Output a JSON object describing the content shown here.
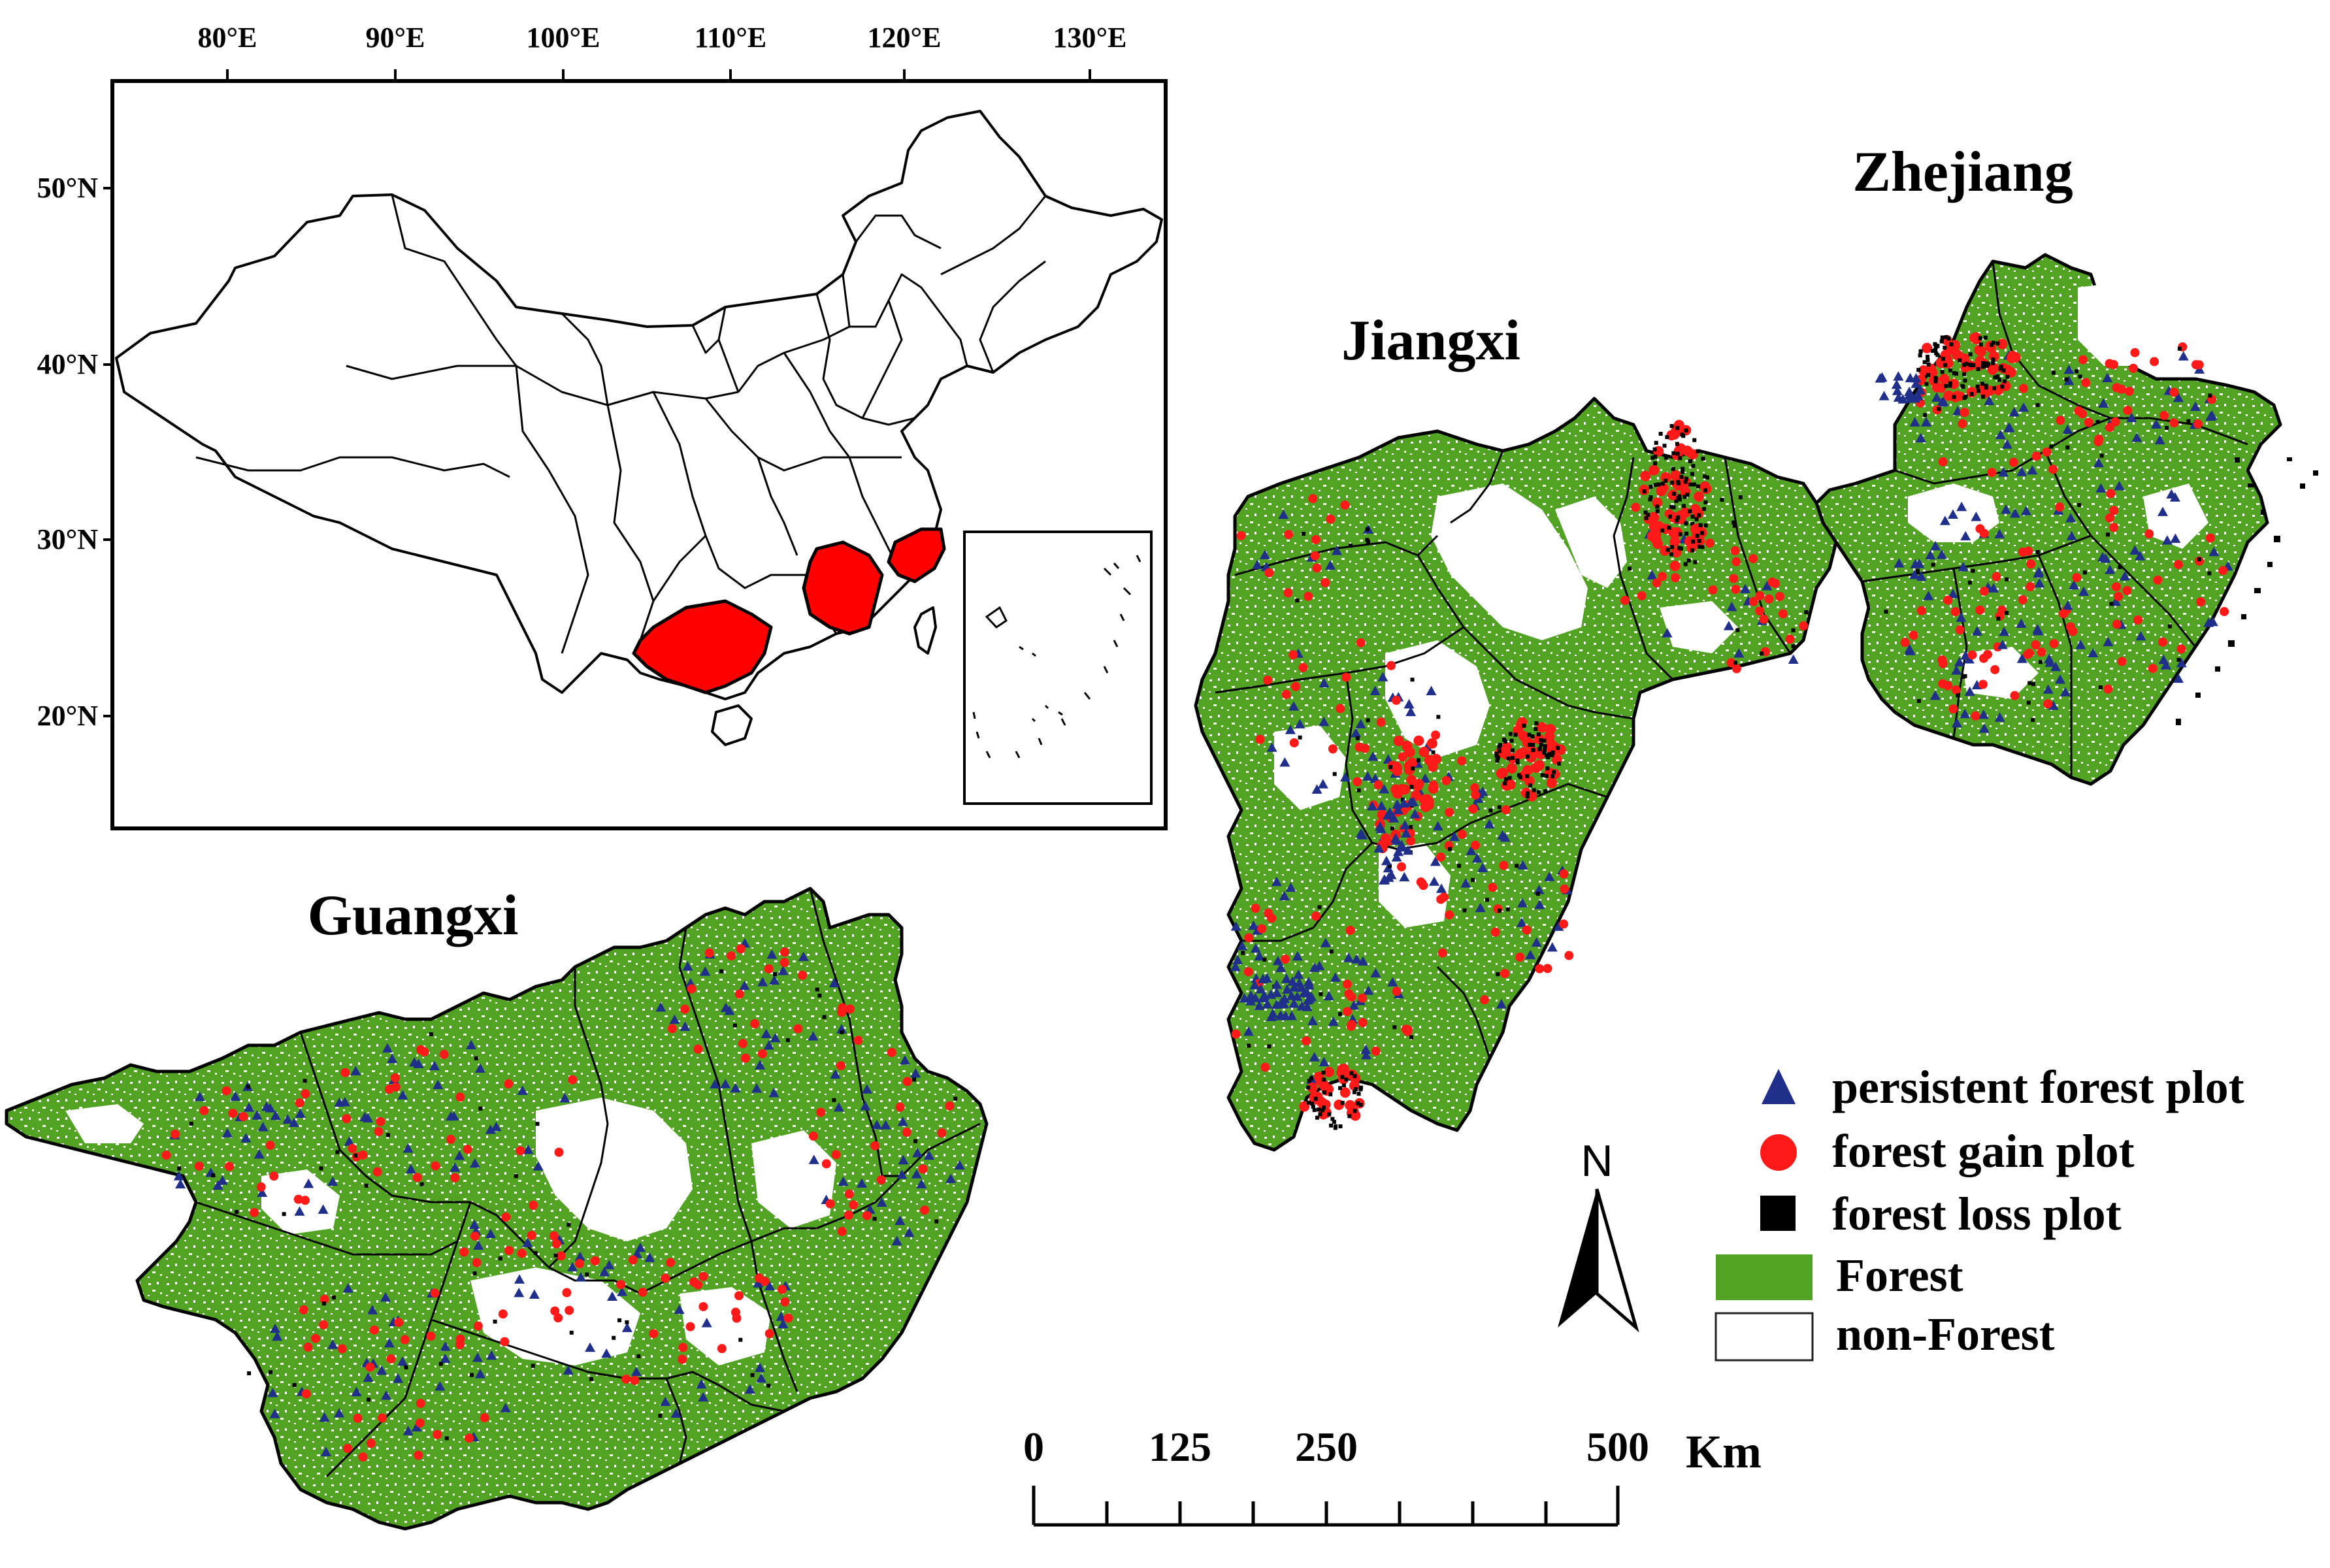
{
  "inset": {
    "lon_labels": [
      "80°E",
      "90°E",
      "100°E",
      "110°E",
      "120°E",
      "130°E"
    ],
    "lat_labels": [
      "50°N",
      "40°N",
      "30°N",
      "20°N"
    ],
    "highlighted_provinces": [
      "Guangxi",
      "Jiangxi",
      "Zhejiang"
    ]
  },
  "regions": {
    "zhejiang": "Zhejiang",
    "jiangxi": "Jiangxi",
    "guangxi": "Guangxi"
  },
  "legend": {
    "items": [
      {
        "label": "persistent forest plot",
        "symbol": "triangle",
        "color": "#1f2f8a"
      },
      {
        "label": "forest gain plot",
        "symbol": "circle",
        "color": "#ff1a1a"
      },
      {
        "label": "forest loss plot",
        "symbol": "square",
        "color": "#000000"
      },
      {
        "label": "Forest",
        "symbol": "box",
        "color": "#52a324"
      },
      {
        "label": "non-Forest",
        "symbol": "box",
        "color": "#ffffff"
      }
    ]
  },
  "north_arrow": {
    "label": "N"
  },
  "scale_bar": {
    "ticks": [
      "0",
      "125",
      "250",
      "500"
    ],
    "unit": "Km"
  },
  "colors": {
    "forest": "#52a324",
    "highlight": "#ff0000",
    "persistent": "#1f2f8a",
    "gain": "#ff1a1a",
    "loss": "#000000"
  }
}
